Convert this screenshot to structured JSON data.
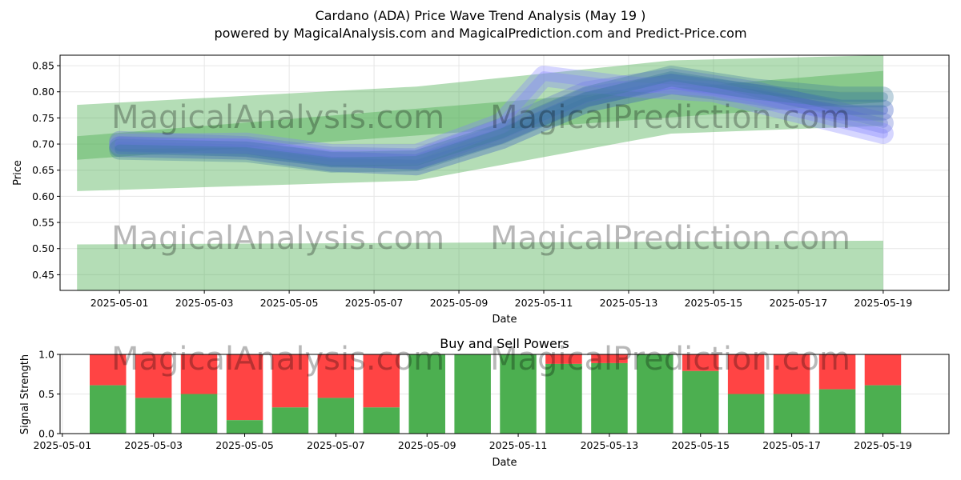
{
  "header": {
    "title": "Cardano (ADA) Price Wave Trend Analysis (May 19 )",
    "subtitle": "powered by MagicalAnalysis.com and MagicalPrediction.com and Predict-Price.com"
  },
  "watermarks": [
    "MagicalAnalysis.com",
    "MagicalPrediction.com"
  ],
  "colors": {
    "green_band": "#4caf50",
    "blue_wave": "#3050c0",
    "buy": "#4caf50",
    "sell": "#ff4444"
  },
  "chart_data": [
    {
      "type": "area",
      "title": "",
      "xlabel": "Date",
      "ylabel": "Price",
      "xlim": [
        "2025-04-29",
        "2025-05-20"
      ],
      "ylim": [
        0.42,
        0.87
      ],
      "x_ticks": [
        "2025-05-01",
        "2025-05-03",
        "2025-05-05",
        "2025-05-07",
        "2025-05-09",
        "2025-05-11",
        "2025-05-13",
        "2025-05-15",
        "2025-05-17",
        "2025-05-19"
      ],
      "y_ticks": [
        "0.45",
        "0.50",
        "0.55",
        "0.60",
        "0.65",
        "0.70",
        "0.75",
        "0.80",
        "0.85"
      ],
      "grid": true,
      "bands": [
        {
          "x": [
            "2025-04-30",
            "2025-05-08",
            "2025-05-14",
            "2025-05-19"
          ],
          "upper": [
            0.775,
            0.81,
            0.86,
            0.87
          ],
          "lower": [
            0.61,
            0.63,
            0.72,
            0.735
          ]
        },
        {
          "x": [
            "2025-04-30",
            "2025-05-19"
          ],
          "upper": [
            0.715,
            0.84
          ],
          "lower": [
            0.67,
            0.78
          ]
        },
        {
          "x": [
            "2025-04-30",
            "2025-05-19"
          ],
          "upper": [
            0.508,
            0.515
          ],
          "lower": [
            0.42,
            0.42
          ]
        }
      ],
      "series": [
        {
          "x": [
            "2025-05-01",
            "2025-05-04",
            "2025-05-06",
            "2025-05-08",
            "2025-05-10",
            "2025-05-12",
            "2025-05-14",
            "2025-05-16",
            "2025-05-18",
            "2025-05-19"
          ],
          "y": [
            0.695,
            0.69,
            0.667,
            0.66,
            0.71,
            0.78,
            0.815,
            0.795,
            0.765,
            0.765
          ]
        },
        {
          "x": [
            "2025-05-01",
            "2025-05-04",
            "2025-05-06",
            "2025-05-08",
            "2025-05-10",
            "2025-05-12",
            "2025-05-14",
            "2025-05-16",
            "2025-05-18",
            "2025-05-19"
          ],
          "y": [
            0.705,
            0.695,
            0.675,
            0.672,
            0.73,
            0.8,
            0.825,
            0.8,
            0.76,
            0.74
          ]
        },
        {
          "x": [
            "2025-05-01",
            "2025-05-04",
            "2025-05-06",
            "2025-05-08",
            "2025-05-10",
            "2025-05-11",
            "2025-05-13",
            "2025-05-15",
            "2025-05-17",
            "2025-05-19"
          ],
          "y": [
            0.7,
            0.702,
            0.68,
            0.68,
            0.74,
            0.83,
            0.81,
            0.8,
            0.76,
            0.72
          ]
        },
        {
          "x": [
            "2025-05-01",
            "2025-05-04",
            "2025-05-06",
            "2025-05-08",
            "2025-05-10",
            "2025-05-12",
            "2025-05-14",
            "2025-05-16",
            "2025-05-18",
            "2025-05-19"
          ],
          "y": [
            0.69,
            0.685,
            0.665,
            0.668,
            0.72,
            0.79,
            0.83,
            0.805,
            0.79,
            0.79
          ]
        }
      ]
    },
    {
      "type": "bar",
      "title": "Buy and Sell Powers",
      "xlabel": "Date",
      "ylabel": "Signal Strength",
      "xlim": [
        "2025-04-30",
        "2025-05-20"
      ],
      "ylim": [
        0,
        1.0
      ],
      "x_ticks": [
        "2025-05-01",
        "2025-05-03",
        "2025-05-05",
        "2025-05-07",
        "2025-05-09",
        "2025-05-11",
        "2025-05-13",
        "2025-05-15",
        "2025-05-17",
        "2025-05-19"
      ],
      "y_ticks": [
        "0.0",
        "0.5",
        "1.0"
      ],
      "grid": true,
      "categories": [
        "2025-05-02",
        "2025-05-03",
        "2025-05-04",
        "2025-05-05",
        "2025-05-06",
        "2025-05-07",
        "2025-05-08",
        "2025-05-09",
        "2025-05-10",
        "2025-05-11",
        "2025-05-12",
        "2025-05-13",
        "2025-05-14",
        "2025-05-15",
        "2025-05-16",
        "2025-05-17",
        "2025-05-18",
        "2025-05-19"
      ],
      "buy": [
        0.61,
        0.45,
        0.5,
        0.17,
        0.33,
        0.45,
        0.33,
        1.0,
        1.0,
        1.0,
        0.88,
        0.89,
        1.0,
        0.79,
        0.5,
        0.5,
        0.56,
        0.61
      ]
    }
  ]
}
